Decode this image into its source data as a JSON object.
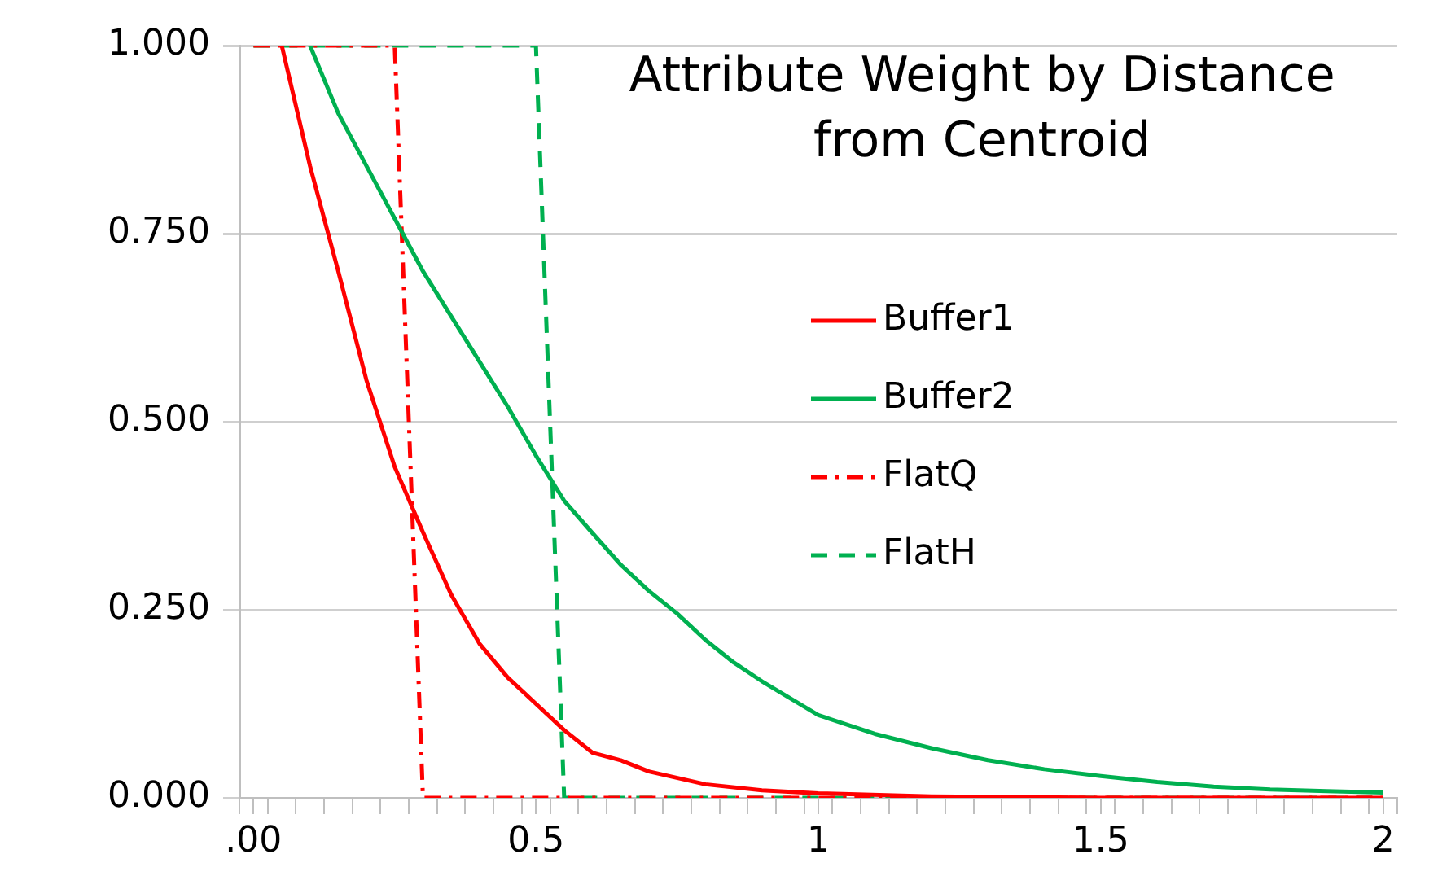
{
  "chart_data": {
    "type": "line",
    "title": "Attribute Weight by Distance from Centroid",
    "series": [
      {
        "name": "Buffer1",
        "color": "#ff0000",
        "line_style": "solid",
        "x": [
          0.05,
          0.1,
          0.15,
          0.2,
          0.25,
          0.3,
          0.35,
          0.4,
          0.45,
          0.5,
          0.55,
          0.6,
          0.65,
          0.7,
          0.8,
          0.9,
          1.0,
          1.2,
          1.5,
          2.0
        ],
        "values": [
          1.0,
          0.84,
          0.7,
          0.555,
          0.44,
          0.353,
          0.27,
          0.205,
          0.16,
          0.125,
          0.09,
          0.06,
          0.05,
          0.035,
          0.018,
          0.01,
          0.006,
          0.002,
          0,
          0
        ]
      },
      {
        "name": "Buffer2",
        "color": "#00b050",
        "line_style": "solid",
        "x": [
          0.1,
          0.15,
          0.2,
          0.25,
          0.3,
          0.35,
          0.4,
          0.45,
          0.5,
          0.55,
          0.6,
          0.65,
          0.7,
          0.75,
          0.8,
          0.85,
          0.9,
          1.0,
          1.1,
          1.2,
          1.3,
          1.4,
          1.5,
          1.6,
          1.7,
          1.8,
          1.9,
          2.0
        ],
        "values": [
          1.0,
          0.91,
          0.84,
          0.77,
          0.7,
          0.64,
          0.58,
          0.52,
          0.455,
          0.395,
          0.352,
          0.31,
          0.275,
          0.245,
          0.21,
          0.18,
          0.155,
          0.11,
          0.085,
          0.066,
          0.05,
          0.038,
          0.029,
          0.021,
          0.015,
          0.011,
          0.009,
          0.007
        ]
      },
      {
        "name": "FlatQ",
        "color": "#ff0000",
        "line_style": "dashdot",
        "x": [
          0,
          0.25,
          0.3,
          2.0
        ],
        "values": [
          1,
          1,
          0,
          0
        ]
      },
      {
        "name": "FlatH",
        "color": "#00b050",
        "line_style": "dashed",
        "x": [
          0,
          0.5,
          0.55,
          2.0
        ],
        "values": [
          1,
          1,
          0,
          0
        ]
      }
    ],
    "xlim": [
      -0.025,
      2.025
    ],
    "xticks": [
      {
        "value": -0.025,
        "label": null
      },
      {
        "value": 0,
        "label": ".00"
      },
      {
        "value": 0.025,
        "label": null
      },
      {
        "value": 0.075,
        "label": null
      },
      {
        "value": 0.125,
        "label": null
      },
      {
        "value": 0.175,
        "label": null
      },
      {
        "value": 0.225,
        "label": null
      },
      {
        "value": 0.275,
        "label": null
      },
      {
        "value": 0.325,
        "label": null
      },
      {
        "value": 0.375,
        "label": null
      },
      {
        "value": 0.425,
        "label": null
      },
      {
        "value": 0.475,
        "label": null
      },
      {
        "value": 0.5,
        "label": "0.5"
      },
      {
        "value": 0.525,
        "label": null
      },
      {
        "value": 0.575,
        "label": null
      },
      {
        "value": 0.625,
        "label": null
      },
      {
        "value": 0.675,
        "label": null
      },
      {
        "value": 0.725,
        "label": null
      },
      {
        "value": 0.775,
        "label": null
      },
      {
        "value": 0.825,
        "label": null
      },
      {
        "value": 0.875,
        "label": null
      },
      {
        "value": 0.925,
        "label": null
      },
      {
        "value": 0.975,
        "label": null
      },
      1,
      {
        "value": 1.025,
        "label": null
      },
      {
        "value": 1.075,
        "label": null
      },
      {
        "value": 1.125,
        "label": null
      },
      {
        "value": 1.175,
        "label": null
      },
      {
        "value": 1.225,
        "label": null
      },
      {
        "value": 1.275,
        "label": null
      },
      {
        "value": 1.325,
        "label": null
      },
      {
        "value": 1.375,
        "label": null
      },
      {
        "value": 1.425,
        "label": null
      },
      {
        "value": 1.475,
        "label": null
      },
      1.5,
      {
        "value": 1.525,
        "label": null
      },
      {
        "value": 1.575,
        "label": null
      },
      {
        "value": 1.625,
        "label": null
      },
      {
        "value": 1.675,
        "label": null
      },
      {
        "value": 1.725,
        "label": null
      },
      {
        "value": 1.775,
        "label": null
      },
      {
        "value": 1.825,
        "label": null
      },
      {
        "value": 1.875,
        "label": null
      },
      {
        "value": 1.925,
        "label": null
      },
      {
        "value": 1.975,
        "label": null
      },
      2,
      {
        "value": 2.025,
        "label": null
      }
    ],
    "ylim": [
      0,
      1
    ],
    "yticks": [
      {
        "value": 0,
        "label": "0.000"
      },
      {
        "value": 0.25,
        "label": "0.250"
      },
      {
        "value": 0.5,
        "label": "0.500"
      },
      {
        "value": 0.75,
        "label": "0.750"
      },
      {
        "value": 1,
        "label": "1.000"
      }
    ],
    "grid": "y",
    "legend": "right",
    "marker": "none"
  }
}
